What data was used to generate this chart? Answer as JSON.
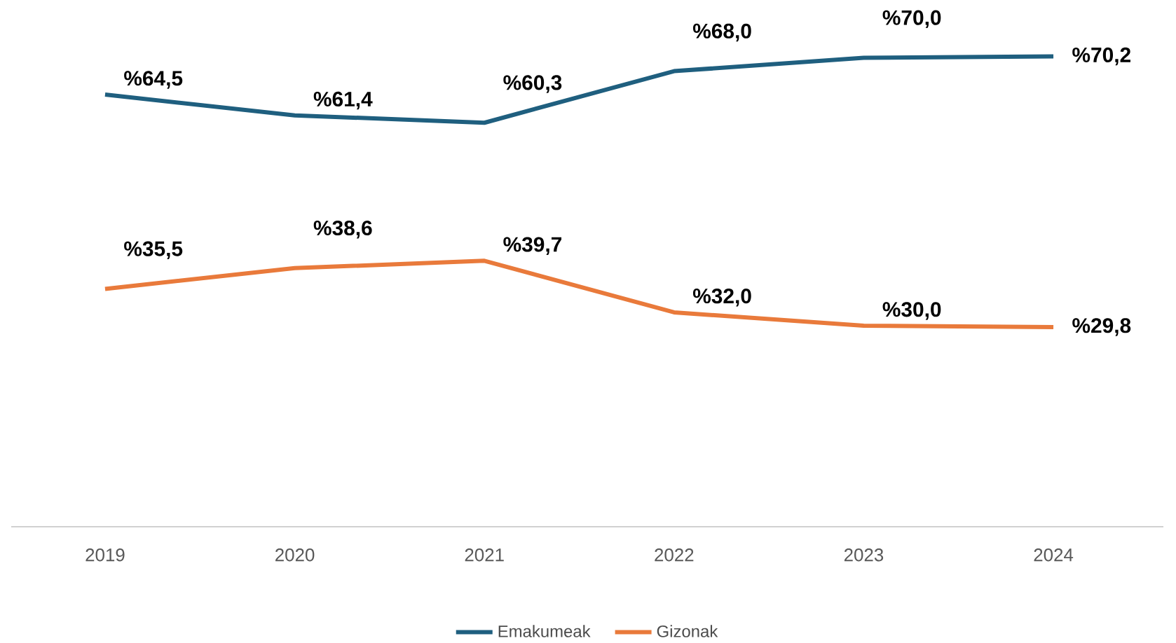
{
  "chart_data": {
    "type": "line",
    "categories": [
      "2019",
      "2020",
      "2021",
      "2022",
      "2023",
      "2024"
    ],
    "series": [
      {
        "name": "Emakumeak",
        "color": "#1f5f7f",
        "values": [
          64.5,
          61.4,
          60.3,
          68.0,
          70.0,
          70.2
        ],
        "value_labels": [
          "%64,5",
          "%61,4",
          "%60,3",
          "%68,0",
          "%70,0",
          "%70,2"
        ]
      },
      {
        "name": "Gizonak",
        "color": "#e97a3b",
        "values": [
          35.5,
          38.6,
          39.7,
          32.0,
          30.0,
          29.8
        ],
        "value_labels": [
          "%35,5",
          "%38,6",
          "%39,7",
          "%32,0",
          "%30,0",
          "%29,8"
        ]
      }
    ],
    "legend": "bottom",
    "marker": "none",
    "line_style": "solid"
  }
}
